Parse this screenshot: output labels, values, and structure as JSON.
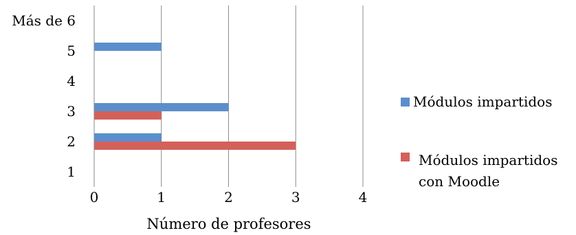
{
  "chart_data": {
    "type": "bar",
    "orientation": "horizontal",
    "title": "",
    "xlabel": "Número de profesores",
    "ylabel": "",
    "categories": [
      "1",
      "2",
      "3",
      "4",
      "5",
      "Más de 6"
    ],
    "series": [
      {
        "name": "Módulos impartidos",
        "values": [
          0,
          1,
          2,
          0,
          1,
          0
        ],
        "color": "#5b8fcc"
      },
      {
        "name": "Módulos impartidos con Moodle",
        "values": [
          0,
          3,
          1,
          0,
          0,
          0
        ],
        "color": "#d4605a"
      }
    ],
    "xlim": [
      0,
      4
    ],
    "xticks": [
      "0",
      "1",
      "2",
      "3",
      "4"
    ],
    "grid": "vertical",
    "legend": "right"
  },
  "legend": {
    "item1": {
      "label": "Módulos impartidos"
    },
    "item2": {
      "line1": "Módulos impartidos",
      "line2": "con Moodle"
    }
  }
}
